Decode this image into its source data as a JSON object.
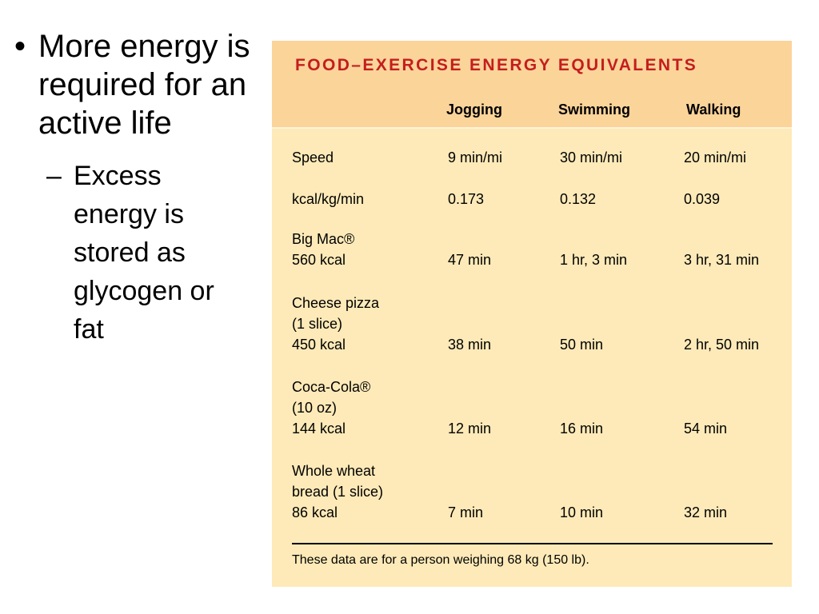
{
  "bullets": {
    "main": {
      "mark": "•",
      "text": "More energy is required for an active life"
    },
    "sub": {
      "mark": "–",
      "text": "Excess energy is stored as glycogen or fat"
    }
  },
  "table": {
    "title": "FOOD–EXERCISE ENERGY EQUIVALENTS",
    "columns": [
      "Jogging",
      "Swimming",
      "Walking"
    ],
    "rows": [
      {
        "label_lines": [
          "Speed"
        ],
        "values": [
          "9 min/mi",
          "30 min/mi",
          "20 min/mi"
        ]
      },
      {
        "label_lines": [
          "kcal/kg/min"
        ],
        "values": [
          "0.173",
          "0.132",
          "0.039"
        ]
      },
      {
        "label_lines": [
          "Big Mac®",
          "560 kcal"
        ],
        "values": [
          "47 min",
          "1 hr, 3 min",
          "3 hr, 31 min"
        ]
      },
      {
        "label_lines": [
          "Cheese pizza",
          "(1 slice)",
          "450 kcal"
        ],
        "values": [
          "38 min",
          "50 min",
          "2 hr, 50 min"
        ]
      },
      {
        "label_lines": [
          "Coca-Cola®",
          "(10 oz)",
          "144 kcal"
        ],
        "values": [
          "12 min",
          "16 min",
          "54 min"
        ]
      },
      {
        "label_lines": [
          "Whole wheat",
          "bread (1 slice)",
          "86 kcal"
        ],
        "values": [
          "7 min",
          "10 min",
          "32 min"
        ]
      }
    ],
    "footnote": "These data are for a person weighing 68 kg (150 lb)."
  }
}
